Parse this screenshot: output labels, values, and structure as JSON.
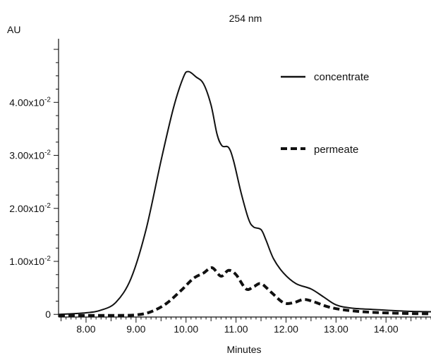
{
  "chart_data": {
    "type": "line",
    "title": "254 nm",
    "xlabel": "Minutes",
    "ylabel": "AU",
    "xlim": [
      7.45,
      14.9
    ],
    "ylim": [
      -0.0005,
      0.052
    ],
    "grid": false,
    "legend_position": "top-right",
    "x_ticks": [
      {
        "value": 8.0,
        "label": "8.00"
      },
      {
        "value": 9.0,
        "label": "9.00"
      },
      {
        "value": 10.0,
        "label": "10.00"
      },
      {
        "value": 11.0,
        "label": "11.00"
      },
      {
        "value": 12.0,
        "label": "12.00"
      },
      {
        "value": 13.0,
        "label": "13.00"
      },
      {
        "value": 14.0,
        "label": "14.00"
      }
    ],
    "y_ticks": [
      {
        "value": 0,
        "label": "0",
        "exp": ""
      },
      {
        "value": 0.01,
        "label": "1.00x10",
        "exp": "-2"
      },
      {
        "value": 0.02,
        "label": "2.00x10",
        "exp": "-2"
      },
      {
        "value": 0.03,
        "label": "3.00x10",
        "exp": "-2"
      },
      {
        "value": 0.04,
        "label": "4.00x10",
        "exp": "-2"
      }
    ],
    "series": [
      {
        "name": "concentrate",
        "color": "#111111",
        "style": "solid",
        "points": [
          [
            7.45,
            0.0
          ],
          [
            8.0,
            0.0003
          ],
          [
            8.3,
            0.0008
          ],
          [
            8.6,
            0.0023
          ],
          [
            8.9,
            0.0068
          ],
          [
            9.2,
            0.016
          ],
          [
            9.5,
            0.029
          ],
          [
            9.75,
            0.039
          ],
          [
            9.95,
            0.0448
          ],
          [
            10.05,
            0.0458
          ],
          [
            10.2,
            0.0448
          ],
          [
            10.35,
            0.0435
          ],
          [
            10.5,
            0.0395
          ],
          [
            10.62,
            0.034
          ],
          [
            10.72,
            0.0318
          ],
          [
            10.85,
            0.0315
          ],
          [
            10.95,
            0.029
          ],
          [
            11.1,
            0.023
          ],
          [
            11.25,
            0.018
          ],
          [
            11.35,
            0.0165
          ],
          [
            11.5,
            0.016
          ],
          [
            11.6,
            0.014
          ],
          [
            11.75,
            0.0105
          ],
          [
            11.95,
            0.0078
          ],
          [
            12.2,
            0.0058
          ],
          [
            12.5,
            0.0048
          ],
          [
            12.75,
            0.0033
          ],
          [
            13.0,
            0.0018
          ],
          [
            13.3,
            0.0012
          ],
          [
            13.8,
            0.0009
          ],
          [
            14.4,
            0.0006
          ],
          [
            14.9,
            0.0005
          ]
        ]
      },
      {
        "name": "permeate",
        "color": "#111111",
        "style": "dashed",
        "points": [
          [
            7.45,
            -0.0002
          ],
          [
            8.5,
            -0.0002
          ],
          [
            9.0,
            -0.0001
          ],
          [
            9.3,
            0.0005
          ],
          [
            9.6,
            0.002
          ],
          [
            9.9,
            0.0045
          ],
          [
            10.15,
            0.0068
          ],
          [
            10.35,
            0.0078
          ],
          [
            10.52,
            0.0088
          ],
          [
            10.7,
            0.0072
          ],
          [
            10.85,
            0.0083
          ],
          [
            11.0,
            0.0075
          ],
          [
            11.2,
            0.0048
          ],
          [
            11.35,
            0.0052
          ],
          [
            11.5,
            0.0058
          ],
          [
            11.7,
            0.0042
          ],
          [
            11.95,
            0.0022
          ],
          [
            12.15,
            0.0022
          ],
          [
            12.35,
            0.0028
          ],
          [
            12.55,
            0.0024
          ],
          [
            12.85,
            0.0014
          ],
          [
            13.2,
            0.0008
          ],
          [
            13.7,
            0.0004
          ],
          [
            14.3,
            0.0002
          ],
          [
            14.9,
            0.0001
          ]
        ]
      }
    ]
  }
}
